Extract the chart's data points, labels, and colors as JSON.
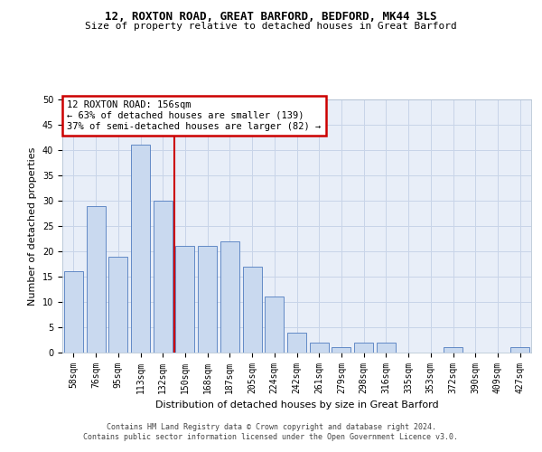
{
  "title1": "12, ROXTON ROAD, GREAT BARFORD, BEDFORD, MK44 3LS",
  "title2": "Size of property relative to detached houses in Great Barford",
  "xlabel": "Distribution of detached houses by size in Great Barford",
  "ylabel": "Number of detached properties",
  "categories": [
    "58sqm",
    "76sqm",
    "95sqm",
    "113sqm",
    "132sqm",
    "150sqm",
    "168sqm",
    "187sqm",
    "205sqm",
    "224sqm",
    "242sqm",
    "261sqm",
    "279sqm",
    "298sqm",
    "316sqm",
    "335sqm",
    "353sqm",
    "372sqm",
    "390sqm",
    "409sqm",
    "427sqm"
  ],
  "values": [
    16,
    29,
    19,
    41,
    30,
    21,
    21,
    22,
    17,
    11,
    4,
    2,
    1,
    2,
    2,
    0,
    0,
    1,
    0,
    0,
    1
  ],
  "bar_color": "#c9d9ef",
  "bar_edge_color": "#4f7bbf",
  "grid_color": "#c8d4e8",
  "vline_index": 5,
  "vline_color": "#cc0000",
  "annotation_text": "12 ROXTON ROAD: 156sqm\n← 63% of detached houses are smaller (139)\n37% of semi-detached houses are larger (82) →",
  "annotation_box_color": "#cc0000",
  "background_color": "#e8eef8",
  "ylim": [
    0,
    50
  ],
  "yticks": [
    0,
    5,
    10,
    15,
    20,
    25,
    30,
    35,
    40,
    45,
    50
  ],
  "footer": "Contains HM Land Registry data © Crown copyright and database right 2024.\nContains public sector information licensed under the Open Government Licence v3.0.",
  "title1_fontsize": 9,
  "title2_fontsize": 8,
  "xlabel_fontsize": 8,
  "ylabel_fontsize": 8,
  "tick_fontsize": 7,
  "annotation_fontsize": 7.5,
  "footer_fontsize": 6
}
